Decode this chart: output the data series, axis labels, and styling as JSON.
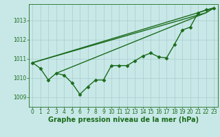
{
  "xlabel": "Graphe pression niveau de la mer (hPa)",
  "x": [
    0,
    1,
    2,
    3,
    4,
    5,
    6,
    7,
    8,
    9,
    10,
    11,
    12,
    13,
    14,
    15,
    16,
    17,
    18,
    19,
    20,
    21,
    22,
    23
  ],
  "y_main": [
    1010.8,
    1010.5,
    1009.9,
    1010.25,
    1010.15,
    1009.75,
    1009.15,
    1009.55,
    1009.9,
    1009.9,
    1010.65,
    1010.65,
    1010.65,
    1010.9,
    1011.15,
    1011.3,
    1011.1,
    1011.05,
    1011.75,
    1012.5,
    1012.65,
    1013.4,
    1013.55,
    1013.65
  ],
  "straight_lines": [
    {
      "x": [
        0,
        23
      ],
      "y": [
        1010.8,
        1013.65
      ]
    },
    {
      "x": [
        0,
        22,
        23
      ],
      "y": [
        1010.8,
        1013.4,
        1013.65
      ]
    },
    {
      "x": [
        3,
        22,
        23
      ],
      "y": [
        1010.25,
        1013.4,
        1013.65
      ]
    }
  ],
  "ylim": [
    1008.5,
    1013.85
  ],
  "xlim": [
    -0.5,
    23.5
  ],
  "yticks": [
    1009,
    1010,
    1011,
    1012,
    1013
  ],
  "xticks": [
    0,
    1,
    2,
    3,
    4,
    5,
    6,
    7,
    8,
    9,
    10,
    11,
    12,
    13,
    14,
    15,
    16,
    17,
    18,
    19,
    20,
    21,
    22,
    23
  ],
  "bg_color": "#c8e8e8",
  "line_color": "#1a6b1a",
  "grid_color": "#aacccc",
  "text_color": "#1a6b1a",
  "marker": "D",
  "marker_size": 2.5,
  "line_width": 1.0,
  "font_size_label": 7.0,
  "font_size_tick": 5.5
}
